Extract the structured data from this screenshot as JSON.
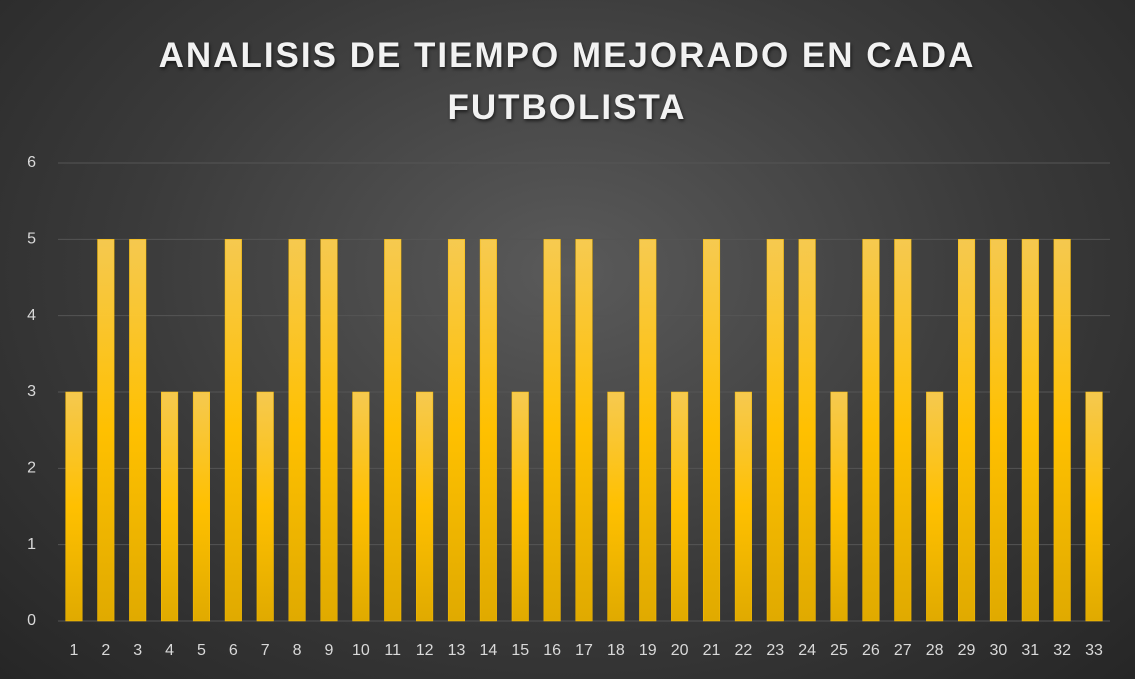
{
  "chart_data": {
    "type": "bar",
    "title": "ANALISIS DE TIEMPO MEJORADO EN CADA FUTBOLISTA",
    "categories": [
      "1",
      "2",
      "3",
      "4",
      "5",
      "6",
      "7",
      "8",
      "9",
      "10",
      "11",
      "12",
      "13",
      "14",
      "15",
      "16",
      "17",
      "18",
      "19",
      "20",
      "21",
      "22",
      "23",
      "24",
      "25",
      "26",
      "27",
      "28",
      "29",
      "30",
      "31",
      "32",
      "33"
    ],
    "values": [
      3,
      5,
      5,
      3,
      3,
      5,
      3,
      5,
      5,
      3,
      5,
      3,
      5,
      5,
      3,
      5,
      5,
      3,
      5,
      3,
      5,
      3,
      5,
      5,
      3,
      5,
      5,
      3,
      5,
      5,
      5,
      5,
      3
    ],
    "color": "#ffc000",
    "ylim": [
      0,
      6
    ],
    "yticks": [
      0,
      1,
      2,
      3,
      4,
      5,
      6
    ],
    "grid": true
  }
}
